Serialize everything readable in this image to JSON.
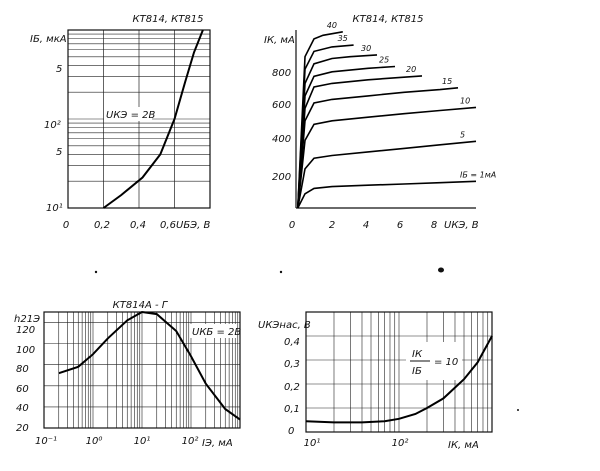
{
  "chart_data": [
    {
      "type": "line",
      "title": "КТ814, КТ815",
      "ylabel": "IБ, мкА",
      "xlabel": "UБЭ, В",
      "yscale": "log",
      "ylim": [
        10,
        1000
      ],
      "xlim": [
        0,
        0.8
      ],
      "x_ticks": [
        "0",
        "0,2",
        "0,4",
        "0,6"
      ],
      "y_ticks": [
        "10¹",
        "5",
        "10²",
        "5"
      ],
      "annotation": "UКЭ = 2В",
      "series": [
        {
          "x": [
            0.2,
            0.3,
            0.42,
            0.52,
            0.6,
            0.66,
            0.71,
            0.76
          ],
          "y": [
            10,
            14,
            22,
            40,
            100,
            260,
            560,
            1000
          ]
        }
      ]
    },
    {
      "type": "line",
      "title": "КТ814, КТ815",
      "ylabel": "IК, мА",
      "xlabel": "UКЭ, В",
      "xlim": [
        0,
        10
      ],
      "ylim": [
        0,
        1000
      ],
      "x_ticks": [
        "0",
        "2",
        "4",
        "6",
        "8"
      ],
      "y_ticks": [
        "200",
        "400",
        "600",
        "800"
      ],
      "series": [
        {
          "label": "IБ = 1мА",
          "x": [
            0.1,
            0.5,
            1,
            2,
            4,
            6,
            8,
            10
          ],
          "y": [
            0,
            80,
            110,
            120,
            128,
            135,
            142,
            150
          ]
        },
        {
          "label": "5",
          "x": [
            0.1,
            0.5,
            1,
            2,
            4,
            6,
            8,
            10
          ],
          "y": [
            0,
            220,
            280,
            295,
            315,
            335,
            355,
            375
          ]
        },
        {
          "label": "10",
          "x": [
            0.1,
            0.5,
            1,
            2,
            4,
            6,
            8,
            10
          ],
          "y": [
            0,
            380,
            470,
            490,
            510,
            530,
            548,
            565
          ]
        },
        {
          "label": "15",
          "x": [
            0.1,
            0.5,
            1,
            2,
            4,
            6,
            8,
            9
          ],
          "y": [
            0,
            490,
            590,
            610,
            630,
            650,
            665,
            675
          ]
        },
        {
          "label": "20",
          "x": [
            0.1,
            0.5,
            1,
            2,
            4,
            6,
            7
          ],
          "y": [
            0,
            560,
            680,
            700,
            720,
            735,
            742
          ]
        },
        {
          "label": "25",
          "x": [
            0.1,
            0.5,
            1,
            2,
            4,
            5.5
          ],
          "y": [
            0,
            630,
            740,
            765,
            785,
            795
          ]
        },
        {
          "label": "30",
          "x": [
            0.1,
            0.5,
            1,
            2,
            3,
            4.5
          ],
          "y": [
            0,
            700,
            810,
            840,
            850,
            860
          ]
        },
        {
          "label": "35",
          "x": [
            0.1,
            0.5,
            1,
            2,
            3.2
          ],
          "y": [
            0,
            780,
            880,
            905,
            915
          ]
        },
        {
          "label": "40",
          "x": [
            0.1,
            0.5,
            1,
            1.5,
            2.6
          ],
          "y": [
            0,
            850,
            950,
            970,
            990
          ]
        }
      ]
    },
    {
      "type": "line",
      "title": "КТ814А - Г",
      "ylabel": "h21Э",
      "xlabel": "IЭ, мА",
      "xscale": "log",
      "xlim": [
        0.1,
        1000
      ],
      "ylim": [
        20,
        130
      ],
      "x_ticks": [
        "10⁻¹",
        "10⁰",
        "10¹",
        "10²",
        "10³"
      ],
      "y_ticks": [
        "20",
        "40",
        "60",
        "80",
        "100",
        "120"
      ],
      "annotation": "UКБ = 2В",
      "series": [
        {
          "x": [
            0.2,
            0.5,
            1,
            2,
            5,
            10,
            20,
            50,
            100,
            200,
            500,
            1000
          ],
          "y": [
            72,
            78,
            90,
            105,
            122,
            130,
            128,
            112,
            88,
            62,
            38,
            28
          ]
        }
      ]
    },
    {
      "type": "line",
      "ylabel": "UКЭнас, В",
      "xlabel": "IК, мА",
      "xscale": "log",
      "xlim": [
        10,
        1000
      ],
      "ylim": [
        0,
        0.5
      ],
      "x_ticks": [
        "10¹",
        "10²"
      ],
      "y_ticks": [
        "0",
        "0,1",
        "0,2",
        "0,3",
        "0,4"
      ],
      "annotation": {
        "numerator": "IК",
        "denominator": "IБ",
        "value": "= 10"
      },
      "series": [
        {
          "x": [
            10,
            20,
            40,
            70,
            100,
            150,
            200,
            300,
            500,
            700,
            1000
          ],
          "y": [
            0.045,
            0.04,
            0.04,
            0.045,
            0.055,
            0.075,
            0.1,
            0.14,
            0.22,
            0.29,
            0.4
          ]
        }
      ]
    }
  ]
}
